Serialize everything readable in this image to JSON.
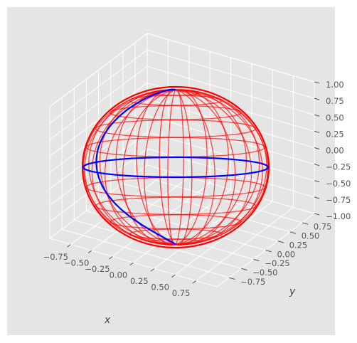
{
  "chart_data": {
    "type": "surface3d",
    "title": "",
    "xlabel": "x",
    "ylabel": "y",
    "zlabel": "",
    "xlim": [
      -0.9,
      0.9
    ],
    "ylim": [
      -0.9,
      0.9
    ],
    "zlim": [
      -1.0,
      1.0
    ],
    "xticks": [
      "−0.75",
      "−0.50",
      "−0.25",
      "0.00",
      "0.25",
      "0.50",
      "0.75"
    ],
    "yticks": [
      "−0.75",
      "−0.50",
      "−0.25",
      "0.00",
      "0.25",
      "0.50",
      "0.75"
    ],
    "zticks": [
      "−1.00",
      "−0.75",
      "−0.50",
      "−0.25",
      "0.00",
      "0.25",
      "0.50",
      "0.75",
      "1.00"
    ],
    "grid": true,
    "background": "#e5e5e5",
    "pane_color": "#e5e5e5",
    "grid_color": "#ffffff",
    "sphere": {
      "radius": 1.0,
      "color": "#ff0000",
      "meridians": 24,
      "parallels": 12
    },
    "curves": [
      {
        "kind": "equator",
        "color": "#0000ff"
      },
      {
        "kind": "spiral-meridian",
        "color": "#0000ff"
      }
    ]
  }
}
